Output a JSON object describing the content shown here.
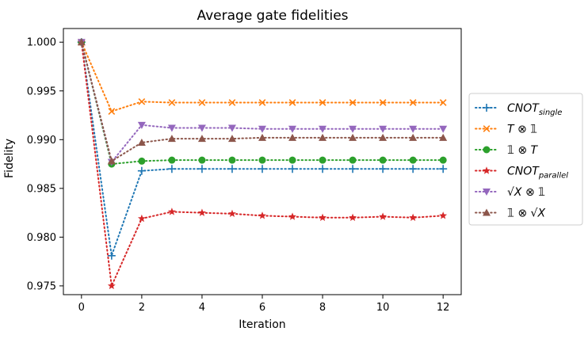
{
  "chart_data": {
    "type": "line",
    "title": "Average gate fidelities",
    "xlabel": "Iteration",
    "ylabel": "Fidelity",
    "xlim": [
      -0.6,
      12.6
    ],
    "ylim": [
      0.9741,
      1.0014
    ],
    "xticks": [
      0,
      2,
      4,
      6,
      8,
      10,
      12
    ],
    "xtick_labels": [
      "0",
      "2",
      "4",
      "6",
      "8",
      "10",
      "12"
    ],
    "yticks": [
      0.975,
      0.98,
      0.985,
      0.99,
      0.995,
      1.0
    ],
    "ytick_labels": [
      "0.975",
      "0.980",
      "0.985",
      "0.990",
      "0.995",
      "1.000"
    ],
    "grid": false,
    "legend_position": "outside-right",
    "x": [
      0,
      1,
      2,
      3,
      4,
      5,
      6,
      7,
      8,
      9,
      10,
      11,
      12
    ],
    "series": [
      {
        "name": "CNOT_single",
        "label_main": "CNOT",
        "label_sub": "single",
        "marker": "plus",
        "color": "#1f77b4",
        "values": [
          1.0,
          0.9781,
          0.9868,
          0.987,
          0.987,
          0.987,
          0.987,
          0.987,
          0.987,
          0.987,
          0.987,
          0.987,
          0.987
        ]
      },
      {
        "name": "T ⊗ 𝟙",
        "label_main": "T ⊗ 𝟙",
        "label_sub": "",
        "marker": "x",
        "color": "#ff7f0e",
        "values": [
          1.0,
          0.9929,
          0.9939,
          0.9938,
          0.9938,
          0.9938,
          0.9938,
          0.9938,
          0.9938,
          0.9938,
          0.9938,
          0.9938,
          0.9938
        ]
      },
      {
        "name": "𝟙 ⊗ T",
        "label_main": "𝟙 ⊗ T",
        "label_sub": "",
        "marker": "circle",
        "color": "#2ca02c",
        "values": [
          1.0,
          0.9875,
          0.9878,
          0.9879,
          0.9879,
          0.9879,
          0.9879,
          0.9879,
          0.9879,
          0.9879,
          0.9879,
          0.9879,
          0.9879
        ]
      },
      {
        "name": "CNOT_parallel",
        "label_main": "CNOT",
        "label_sub": "parallel",
        "marker": "star",
        "color": "#d62728",
        "values": [
          1.0,
          0.975,
          0.9819,
          0.9826,
          0.9825,
          0.9824,
          0.9822,
          0.9821,
          0.982,
          0.982,
          0.9821,
          0.982,
          0.9822
        ]
      },
      {
        "name": "√X ⊗ 𝟙",
        "label_main": "√X ⊗ 𝟙",
        "label_sub": "",
        "marker": "triangle-down",
        "color": "#9467bd",
        "values": [
          1.0,
          0.9877,
          0.9915,
          0.9912,
          0.9912,
          0.9912,
          0.9911,
          0.9911,
          0.9911,
          0.9911,
          0.9911,
          0.9911,
          0.9911
        ]
      },
      {
        "name": "𝟙 ⊗ √X",
        "label_main": "𝟙 ⊗ √X",
        "label_sub": "",
        "marker": "triangle-up",
        "color": "#8c564b",
        "values": [
          1.0,
          0.9878,
          0.9897,
          0.9901,
          0.9901,
          0.9901,
          0.9902,
          0.9902,
          0.9902,
          0.9902,
          0.9902,
          0.9902,
          0.9902
        ]
      }
    ]
  }
}
